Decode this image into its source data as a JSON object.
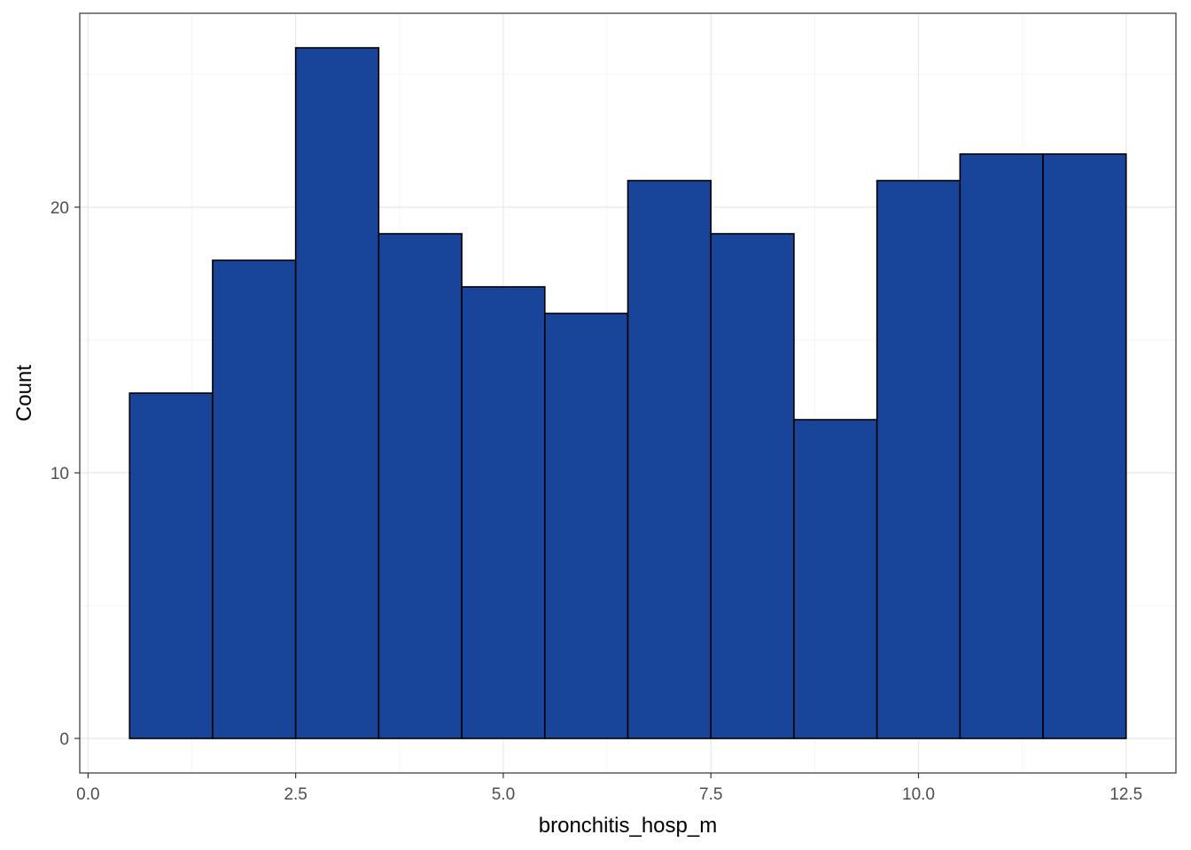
{
  "chart_data": {
    "type": "bar",
    "subtype": "histogram",
    "title": "",
    "xlabel": "bronchitis_hosp_m",
    "ylabel": "Count",
    "x_ticks": [
      0.0,
      2.5,
      5.0,
      7.5,
      10.0,
      12.5
    ],
    "x_tick_labels": [
      "0.0",
      "2.5",
      "5.0",
      "7.5",
      "10.0",
      "12.5"
    ],
    "y_ticks": [
      0,
      10,
      20
    ],
    "y_tick_labels": [
      "0",
      "10",
      "20"
    ],
    "xlim": [
      -0.1,
      13.1
    ],
    "ylim": [
      -1.3,
      27.3
    ],
    "grid": true,
    "legend": "none",
    "bin_width": 1,
    "bins": [
      {
        "x0": 0.5,
        "x1": 1.5,
        "count": 13
      },
      {
        "x0": 1.5,
        "x1": 2.5,
        "count": 18
      },
      {
        "x0": 2.5,
        "x1": 3.5,
        "count": 26
      },
      {
        "x0": 3.5,
        "x1": 4.5,
        "count": 19
      },
      {
        "x0": 4.5,
        "x1": 5.5,
        "count": 17
      },
      {
        "x0": 5.5,
        "x1": 6.5,
        "count": 16
      },
      {
        "x0": 6.5,
        "x1": 7.5,
        "count": 21
      },
      {
        "x0": 7.5,
        "x1": 8.5,
        "count": 19
      },
      {
        "x0": 8.5,
        "x1": 9.5,
        "count": 12
      },
      {
        "x0": 9.5,
        "x1": 10.5,
        "count": 21
      },
      {
        "x0": 10.5,
        "x1": 11.5,
        "count": 22
      },
      {
        "x0": 11.5,
        "x1": 12.5,
        "count": 22
      }
    ],
    "colors": {
      "bar_fill": "#184499",
      "bar_stroke": "#000000",
      "grid_major": "#ebebeb",
      "grid_minor": "#f5f5f5",
      "panel_border": "#333333",
      "tick_text": "#4d4d4d",
      "title_text": "#000000"
    }
  }
}
